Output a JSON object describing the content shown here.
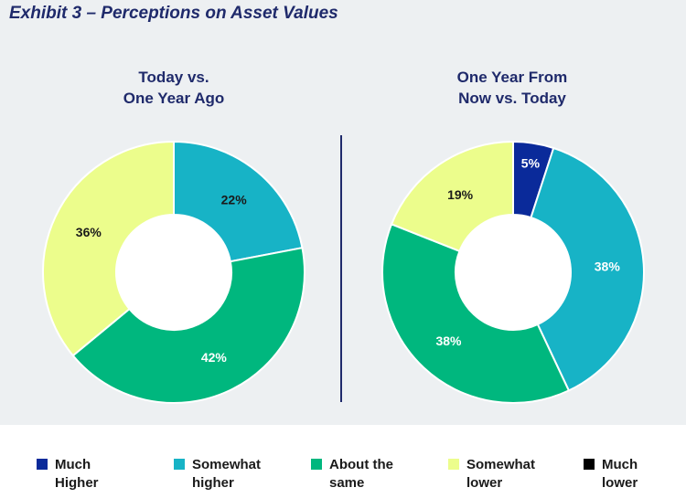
{
  "exhibit_title": "Exhibit 3 – Perceptions on Asset Values",
  "colors": {
    "much_higher": "#0a2a9a",
    "somewhat_higher": "#17b3c6",
    "about_the_same": "#00b77e",
    "somewhat_lower": "#ecfd8c",
    "much_lower": "#000000",
    "label_dark": "#1a1a1a",
    "label_light": "#ffffff"
  },
  "legend": [
    {
      "label": "Much\nHigher",
      "color_key": "much_higher"
    },
    {
      "label": "Somewhat\nhigher",
      "color_key": "somewhat_higher"
    },
    {
      "label": "About the\nsame",
      "color_key": "about_the_same"
    },
    {
      "label": "Somewhat\nlower",
      "color_key": "somewhat_lower"
    },
    {
      "label": "Much\nlower",
      "color_key": "much_lower"
    }
  ],
  "chart_data": [
    {
      "type": "pie",
      "title": "Today vs.\nOne Year Ago",
      "categories": [
        "Much Higher",
        "Somewhat higher",
        "About the same",
        "Somewhat lower",
        "Much lower"
      ],
      "values": [
        0,
        22,
        42,
        36,
        0
      ],
      "labels": [
        "",
        "22%",
        "42%",
        "36%",
        ""
      ],
      "label_colors": [
        "",
        "label_dark",
        "label_light",
        "label_dark",
        ""
      ],
      "start_angle_deg": 0,
      "direction": "clockwise"
    },
    {
      "type": "pie",
      "title": "One Year From\nNow vs. Today",
      "categories": [
        "Much Higher",
        "Somewhat higher",
        "About the same",
        "Somewhat lower",
        "Much lower"
      ],
      "values": [
        5,
        38,
        38,
        19,
        0
      ],
      "labels": [
        "5%",
        "38%",
        "38%",
        "19%",
        ""
      ],
      "label_colors": [
        "label_light",
        "label_light",
        "label_light",
        "label_dark",
        ""
      ],
      "start_angle_deg": 0,
      "direction": "clockwise"
    }
  ]
}
